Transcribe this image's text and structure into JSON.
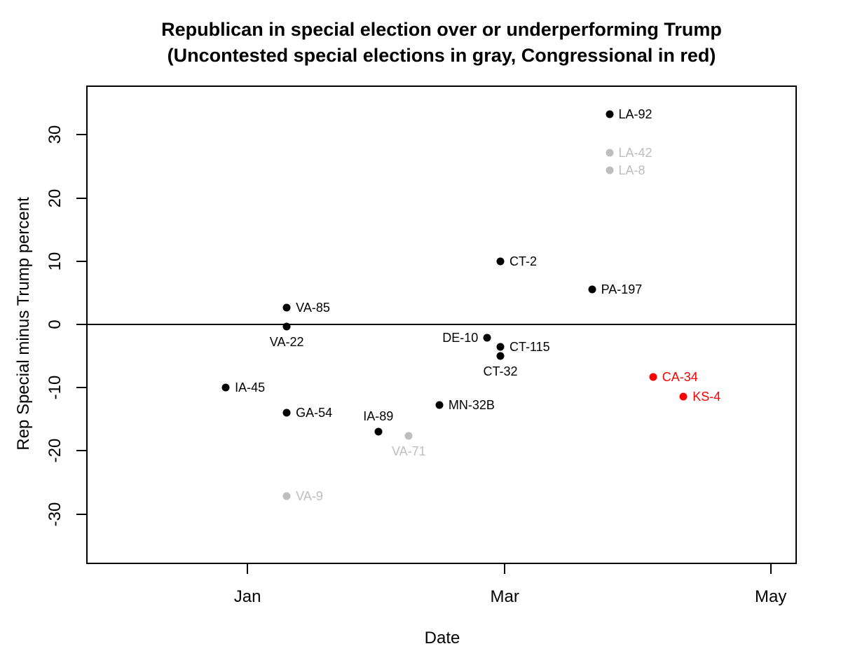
{
  "header": {
    "title": "Republican in special election over or underperforming Trump",
    "subtitle": "(Uncontested special elections in gray, Congressional in red)"
  },
  "chart_data": {
    "type": "scatter",
    "title": "Republican in special election over or underperforming Trump",
    "subtitle": "(Uncontested special elections in gray, Congressional in red)",
    "xlabel": "Date",
    "ylabel": "Rep Special minus Trump percent",
    "x_domain": [
      "2016-11-25",
      "2017-05-07"
    ],
    "y_domain": [
      -37.9,
      37.8
    ],
    "x_ticks": [
      {
        "date": "2017-01-01",
        "label": "Jan"
      },
      {
        "date": "2017-03-01",
        "label": "Mar"
      },
      {
        "date": "2017-05-01",
        "label": "May"
      }
    ],
    "y_ticks": [
      30,
      20,
      10,
      0,
      -10,
      -20,
      -30
    ],
    "zero_line_value": 0,
    "grid": false,
    "legend": "none (encoded in title: gray = uncontested, red = congressional, black = contested state legislative)",
    "colors": {
      "contested": "#000000",
      "uncontested": "#bebebe",
      "congressional": "#ff0000"
    },
    "points": [
      {
        "label": "IA-45",
        "date": "2016-12-27",
        "value": -10.0,
        "category": "contested",
        "label_pos": "right"
      },
      {
        "label": "VA-85",
        "date": "2017-01-10",
        "value": 2.7,
        "category": "contested",
        "label_pos": "right"
      },
      {
        "label": "VA-22",
        "date": "2017-01-10",
        "value": -0.3,
        "category": "contested",
        "label_pos": "below"
      },
      {
        "label": "GA-54",
        "date": "2017-01-10",
        "value": -14.0,
        "category": "contested",
        "label_pos": "right"
      },
      {
        "label": "VA-9",
        "date": "2017-01-10",
        "value": -27.1,
        "category": "uncontested",
        "label_pos": "right"
      },
      {
        "label": "IA-89",
        "date": "2017-01-31",
        "value": -17.0,
        "category": "contested",
        "label_pos": "above"
      },
      {
        "label": "VA-71",
        "date": "2017-02-07",
        "value": -17.6,
        "category": "uncontested",
        "label_pos": "below"
      },
      {
        "label": "MN-32B",
        "date": "2017-02-14",
        "value": -12.7,
        "category": "contested",
        "label_pos": "right"
      },
      {
        "label": "DE-10",
        "date": "2017-02-25",
        "value": -2.1,
        "category": "contested",
        "label_pos": "left"
      },
      {
        "label": "CT-2",
        "date": "2017-02-28",
        "value": 10.0,
        "category": "contested",
        "label_pos": "right"
      },
      {
        "label": "CT-115",
        "date": "2017-02-28",
        "value": -3.5,
        "category": "contested",
        "label_pos": "right"
      },
      {
        "label": "CT-32",
        "date": "2017-02-28",
        "value": -5.0,
        "category": "contested",
        "label_pos": "below"
      },
      {
        "label": "PA-197",
        "date": "2017-03-21",
        "value": 5.6,
        "category": "contested",
        "label_pos": "right"
      },
      {
        "label": "LA-92",
        "date": "2017-03-25",
        "value": 33.3,
        "category": "contested",
        "label_pos": "right"
      },
      {
        "label": "LA-42",
        "date": "2017-03-25",
        "value": 27.2,
        "category": "uncontested",
        "label_pos": "right"
      },
      {
        "label": "LA-8",
        "date": "2017-03-25",
        "value": 24.4,
        "category": "uncontested",
        "label_pos": "right"
      },
      {
        "label": "CA-34",
        "date": "2017-04-04",
        "value": -8.3,
        "category": "congressional",
        "label_pos": "right"
      },
      {
        "label": "KS-4",
        "date": "2017-04-11",
        "value": -11.4,
        "category": "congressional",
        "label_pos": "right"
      }
    ]
  }
}
